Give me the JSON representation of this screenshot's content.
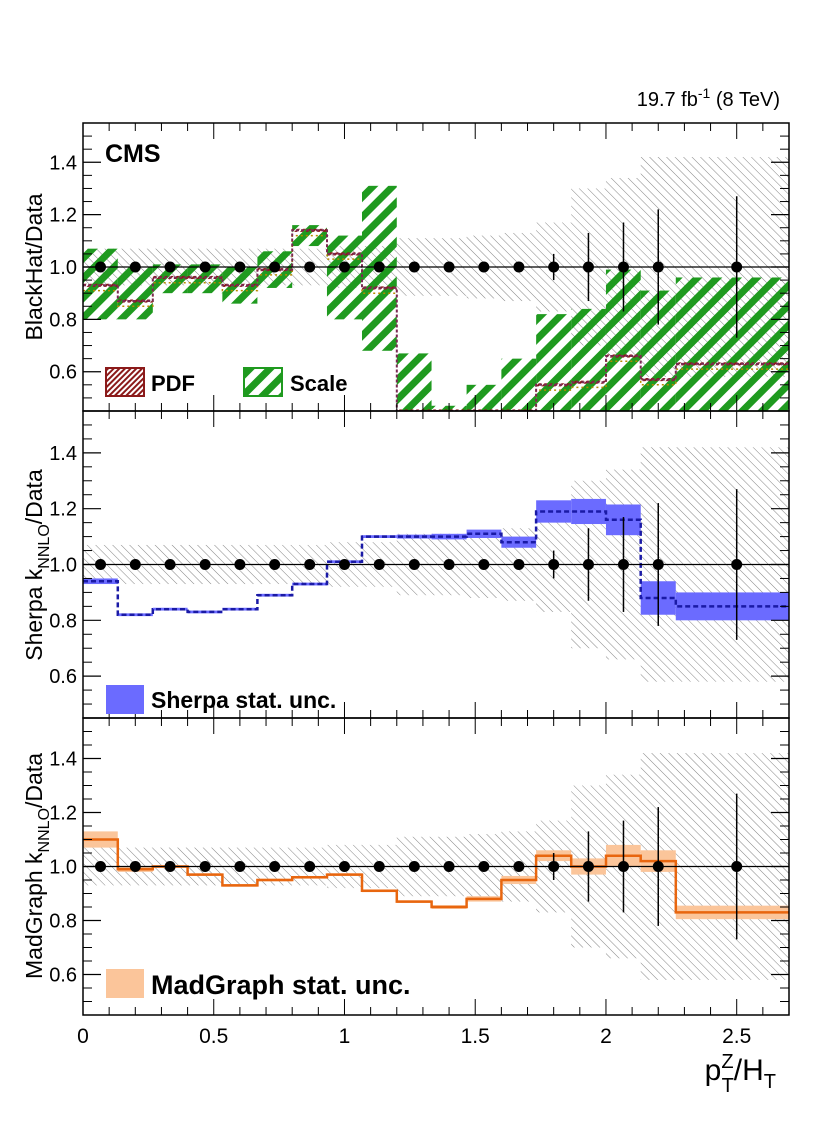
{
  "lumi": {
    "main": "19.7 fb",
    "sup": "-1",
    "energy": " (8 TeV)"
  },
  "experiment": "CMS",
  "x_axis": {
    "label_main": "p",
    "label_sup": "Z",
    "label_sub": "T",
    "label_rest": "/H",
    "label_sub2": "T",
    "range": [
      0,
      2.7
    ],
    "ticks": [
      {
        "v": 0,
        "label": "0"
      },
      {
        "v": 0.5,
        "label": "0.5"
      },
      {
        "v": 1,
        "label": "1"
      },
      {
        "v": 1.5,
        "label": "1.5"
      },
      {
        "v": 2,
        "label": "2"
      },
      {
        "v": 2.5,
        "label": "2.5"
      }
    ]
  },
  "colors": {
    "blackhat_line": "#7a2a52",
    "blackhat_alt": "#b58a00",
    "pdf": "#8b1a1a",
    "scale": "#1f9a1f",
    "sherpa_line": "#1a1aa6",
    "sherpa_band": "#6b6bff",
    "madgraph_line": "#e8660f",
    "madgraph_band": "#fbc59a",
    "data": "#000000",
    "data_band": "#777777"
  },
  "chart_data": {
    "type": "line",
    "bin_edges": [
      0,
      0.133,
      0.267,
      0.4,
      0.533,
      0.667,
      0.8,
      0.933,
      1.067,
      1.2,
      1.333,
      1.467,
      1.6,
      1.733,
      1.867,
      2.0,
      2.133,
      2.267,
      2.7
    ],
    "data_points": {
      "x": [
        0.067,
        0.2,
        0.333,
        0.467,
        0.6,
        0.733,
        0.867,
        1.0,
        1.133,
        1.267,
        1.4,
        1.533,
        1.667,
        1.8,
        1.933,
        2.067,
        2.2,
        2.5
      ],
      "y": [
        1,
        1,
        1,
        1,
        1,
        1,
        1,
        1,
        1,
        1,
        1,
        1,
        1,
        1,
        1,
        1,
        1,
        1
      ],
      "err": [
        0,
        0,
        0,
        0,
        0,
        0,
        0,
        0,
        0,
        0,
        0,
        0,
        0,
        0.05,
        0.13,
        0.17,
        0.22,
        0.27
      ],
      "band_err": [
        0.07,
        0.07,
        0.07,
        0.07,
        0.07,
        0.07,
        0.07,
        0.08,
        0.08,
        0.11,
        0.11,
        0.12,
        0.13,
        0.17,
        0.3,
        0.34,
        0.42,
        0.42
      ]
    },
    "panels": [
      {
        "ylabel": "BlackHat/Data",
        "ylim": [
          0.45,
          1.55
        ],
        "yticks": [
          0.6,
          0.8,
          1.0,
          1.2,
          1.4
        ],
        "ytick_labels": [
          "0.6",
          "0.8",
          "1.0",
          "1.2",
          "1.4"
        ],
        "prediction": [
          0.93,
          0.87,
          0.96,
          0.96,
          0.93,
          0.99,
          1.14,
          1.05,
          0.92,
          0.45,
          0.45,
          0.45,
          0.45,
          0.55,
          0.56,
          0.66,
          0.57,
          0.63
        ],
        "scale_lo": [
          0.8,
          0.8,
          0.9,
          0.9,
          0.86,
          0.92,
          1.08,
          0.8,
          0.68,
          0.45,
          0.45,
          0.45,
          0.45,
          0.45,
          0.45,
          0.45,
          0.45,
          0.45
        ],
        "scale_hi": [
          1.07,
          1.0,
          1.01,
          1.01,
          1.0,
          1.06,
          1.16,
          1.12,
          1.31,
          0.67,
          0.47,
          0.55,
          0.65,
          0.82,
          0.84,
          0.99,
          0.91,
          0.96
        ],
        "legend": [
          {
            "key": "pdf",
            "label": "PDF"
          },
          {
            "key": "scale",
            "label": "Scale"
          }
        ]
      },
      {
        "ylabel_main": "Sherpa k",
        "ylabel_sub": "NNLO",
        "ylabel_rest": "/Data",
        "ylim": [
          0.45,
          1.55
        ],
        "yticks": [
          0.6,
          0.8,
          1.0,
          1.2,
          1.4
        ],
        "ytick_labels": [
          "0.6",
          "0.8",
          "1.0",
          "1.2",
          "1.4"
        ],
        "prediction": [
          0.94,
          0.82,
          0.84,
          0.83,
          0.84,
          0.89,
          0.93,
          1.01,
          1.1,
          1.1,
          1.1,
          1.11,
          1.08,
          1.19,
          1.19,
          1.16,
          0.88,
          0.85
        ],
        "band_err": [
          0.01,
          0.005,
          0.005,
          0.005,
          0.005,
          0.005,
          0.005,
          0.005,
          0.005,
          0.007,
          0.01,
          0.015,
          0.02,
          0.04,
          0.045,
          0.055,
          0.06,
          0.05
        ],
        "legend": [
          {
            "key": "sherpa",
            "label": "Sherpa stat. unc."
          }
        ]
      },
      {
        "ylabel_main": "MadGraph k",
        "ylabel_sub": "NNLO",
        "ylabel_rest": "/Data",
        "ylim": [
          0.45,
          1.55
        ],
        "yticks": [
          0.6,
          0.8,
          1.0,
          1.2,
          1.4
        ],
        "ytick_labels": [
          "0.6",
          "0.8",
          "1.0",
          "1.2",
          "1.4"
        ],
        "prediction": [
          1.1,
          0.99,
          1.0,
          0.97,
          0.93,
          0.95,
          0.96,
          0.97,
          0.91,
          0.87,
          0.85,
          0.88,
          0.95,
          1.04,
          1.0,
          1.04,
          1.02,
          0.83
        ],
        "band_err": [
          0.03,
          0.01,
          0.005,
          0.005,
          0.005,
          0.005,
          0.005,
          0.005,
          0.005,
          0.005,
          0.007,
          0.01,
          0.015,
          0.02,
          0.03,
          0.04,
          0.04,
          0.025
        ],
        "legend": [
          {
            "key": "madgraph",
            "label": "MadGraph stat. unc."
          }
        ]
      }
    ]
  }
}
